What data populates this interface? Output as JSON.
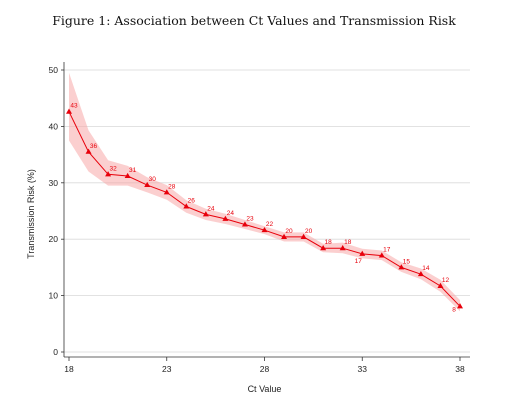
{
  "chart_data": {
    "type": "line",
    "title": "Figure 1: Association between Ct Values and Transmission Risk",
    "xlabel": "Ct Value",
    "ylabel": "Transmission Risk (%)",
    "xlim": [
      18,
      38
    ],
    "ylim": [
      0,
      50
    ],
    "xticks": [
      "18",
      "23",
      "28",
      "33",
      "38"
    ],
    "yticks": [
      "0",
      "10",
      "20",
      "30",
      "40",
      "50"
    ],
    "grid": true,
    "legend": "none",
    "color": "#e8000b",
    "band_color": "#f7a8a8",
    "x": [
      18,
      19,
      20,
      21,
      22,
      23,
      24,
      25,
      26,
      27,
      28,
      29,
      30,
      31,
      32,
      33,
      34,
      35,
      36,
      37,
      38
    ],
    "y": [
      42.6,
      35.5,
      31.5,
      31.2,
      29.6,
      28.3,
      25.8,
      24.4,
      23.6,
      22.6,
      21.6,
      20.4,
      20.4,
      18.4,
      18.4,
      17.4,
      17.1,
      15.0,
      13.8,
      11.7,
      8.1
    ],
    "lower": [
      37.5,
      32.0,
      29.5,
      29.5,
      28.3,
      27.0,
      24.7,
      23.4,
      22.7,
      21.8,
      20.9,
      19.6,
      19.6,
      17.7,
      17.5,
      16.6,
      16.3,
      14.2,
      12.9,
      10.7,
      7.2
    ],
    "upper": [
      49.5,
      39.3,
      34.0,
      33.0,
      31.0,
      29.6,
      26.9,
      25.4,
      24.5,
      23.4,
      22.3,
      21.2,
      21.2,
      19.2,
      19.4,
      18.3,
      18.0,
      15.9,
      14.8,
      12.8,
      9.2
    ],
    "data_labels": [
      "43",
      "36",
      "32",
      "31",
      "30",
      "28",
      "26",
      "24",
      "24",
      "23",
      "22",
      "20",
      "20",
      "18",
      "18",
      "17",
      "17",
      "15",
      "14",
      "12",
      "8"
    ]
  }
}
